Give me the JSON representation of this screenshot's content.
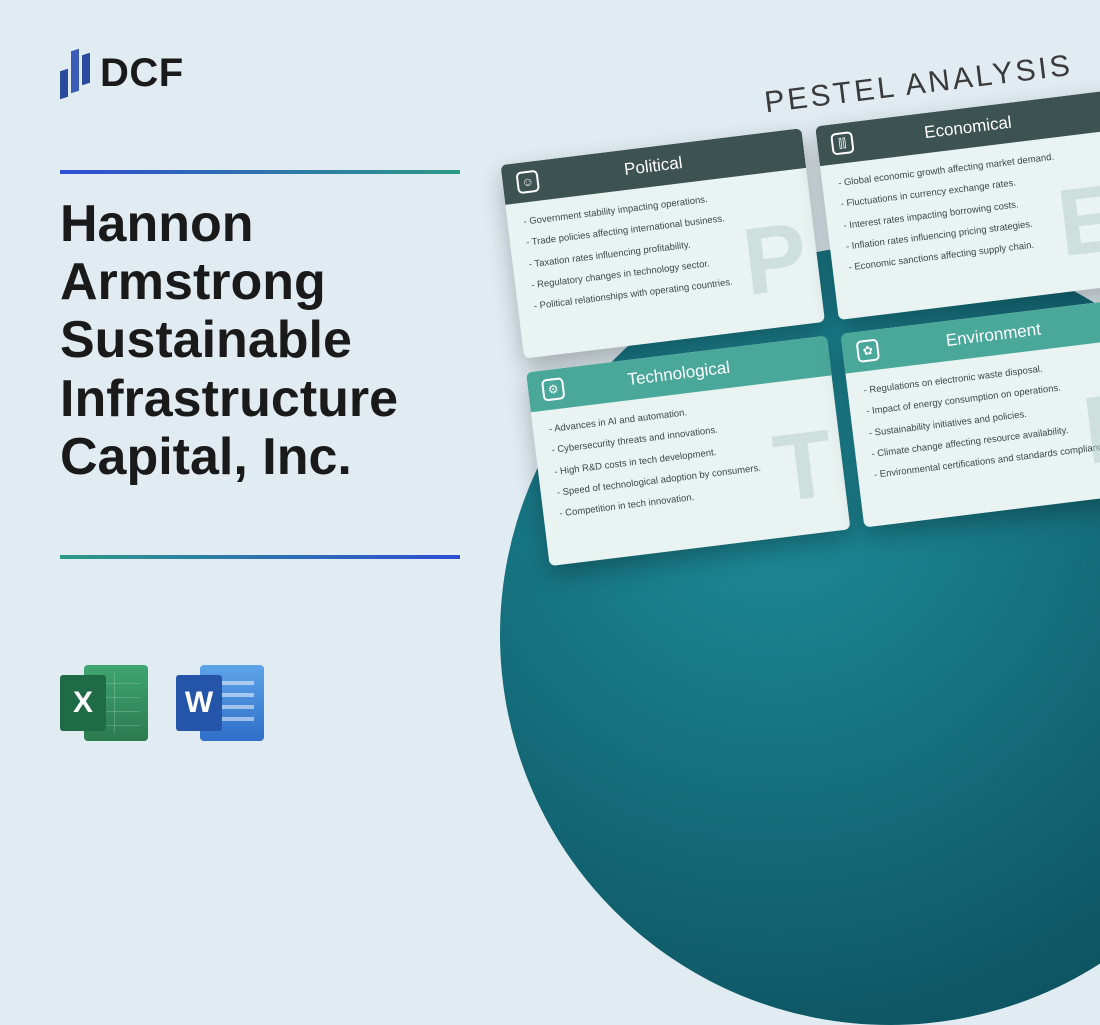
{
  "logo": {
    "text": "DCF"
  },
  "title": "Hannon Armstrong Sustainable Infrastructure Capital, Inc.",
  "file_icons": {
    "excel": {
      "letter": "X"
    },
    "word": {
      "letter": "W"
    }
  },
  "pestel": {
    "heading": "PESTEL ANALYSIS",
    "cards": [
      {
        "title": "Political",
        "icon_glyph": "☺",
        "watermark": "P",
        "style": "dark",
        "items": [
          "Government stability impacting operations.",
          "Trade policies affecting international business.",
          "Taxation rates influencing profitability.",
          "Regulatory changes in technology sector.",
          "Political relationships with operating countries."
        ]
      },
      {
        "title": "Economical",
        "icon_glyph": "⫿⫿",
        "watermark": "E",
        "style": "dark",
        "items": [
          "Global economic growth affecting market demand.",
          "Fluctuations in currency exchange rates.",
          "Interest rates impacting borrowing costs.",
          "Inflation rates influencing pricing strategies.",
          "Economic sanctions affecting supply chain."
        ]
      },
      {
        "title": "Technological",
        "icon_glyph": "⚙",
        "watermark": "T",
        "style": "teal",
        "items": [
          "Advances in AI and automation.",
          "Cybersecurity threats and innovations.",
          "High R&D costs in tech development.",
          "Speed of technological adoption by consumers.",
          "Competition in tech innovation."
        ]
      },
      {
        "title": "Environment",
        "icon_glyph": "✿",
        "watermark": "E",
        "style": "teal",
        "items": [
          "Regulations on electronic waste disposal.",
          "Impact of energy consumption on operations.",
          "Sustainability initiatives and policies.",
          "Climate change affecting resource availability.",
          "Environmental certifications and standards compliance."
        ]
      }
    ]
  },
  "colors": {
    "page_bg": "#e1ecf2",
    "circle_center": "#1f8d9a",
    "circle_edge": "#0b4753",
    "divider_from": "#2d4dd4",
    "divider_to": "#2d9a87",
    "card_dark": "#3d5351",
    "card_teal": "#4aa89a",
    "card_bg": "#e9f3f1"
  }
}
